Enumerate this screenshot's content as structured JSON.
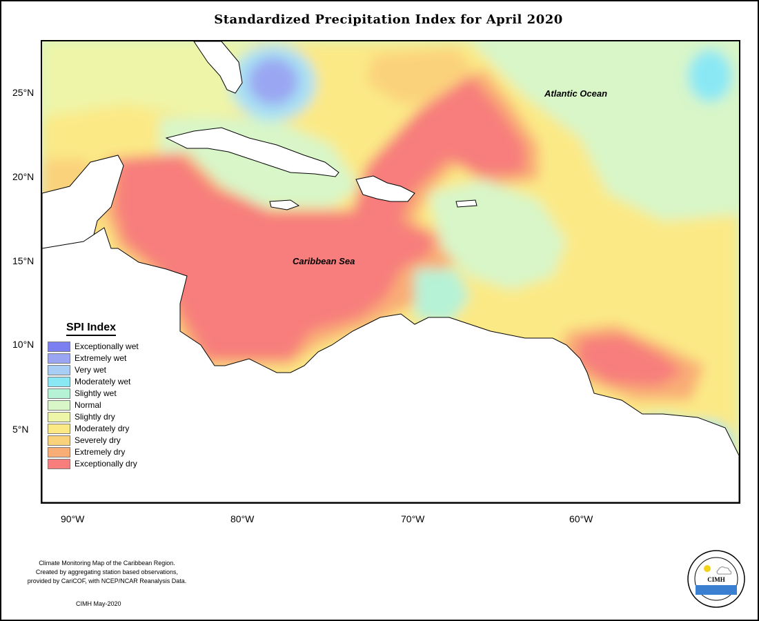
{
  "title": "Standardized Precipitation Index for April 2020",
  "map": {
    "ocean_labels": [
      "Atlantic Ocean",
      "Caribbean Sea"
    ],
    "lat_labels": [
      "25°N",
      "20°N",
      "15°N",
      "10°N",
      "5°N"
    ],
    "lon_labels": [
      "90°W",
      "80°W",
      "70°W",
      "60°W"
    ]
  },
  "legend": {
    "title": "SPI Index",
    "items": [
      {
        "label": "Exceptionally wet",
        "color": "#7b7ff0"
      },
      {
        "label": "Extremely wet",
        "color": "#9aa6f2"
      },
      {
        "label": "Very wet",
        "color": "#a8cef6"
      },
      {
        "label": "Moderately wet",
        "color": "#8ae8f4"
      },
      {
        "label": "Slightly wet",
        "color": "#b6f2d6"
      },
      {
        "label": "Normal",
        "color": "#d8f6c8"
      },
      {
        "label": "Slightly dry",
        "color": "#eef5a8"
      },
      {
        "label": "Moderately dry",
        "color": "#fbe986"
      },
      {
        "label": "Severely dry",
        "color": "#fbd27c"
      },
      {
        "label": "Extremely dry",
        "color": "#f9ad76"
      },
      {
        "label": "Exceptionally dry",
        "color": "#f77e7c"
      }
    ]
  },
  "credits": {
    "lines": [
      "Climate Monitoring Map of the Caribbean Region.",
      "Created by aggregating station based observations,",
      "provided by CariCOF, with NCEP/NCAR Reanalysis Data."
    ],
    "stamp": "CIMH May-2020"
  },
  "logo": {
    "text": "CIMH"
  }
}
